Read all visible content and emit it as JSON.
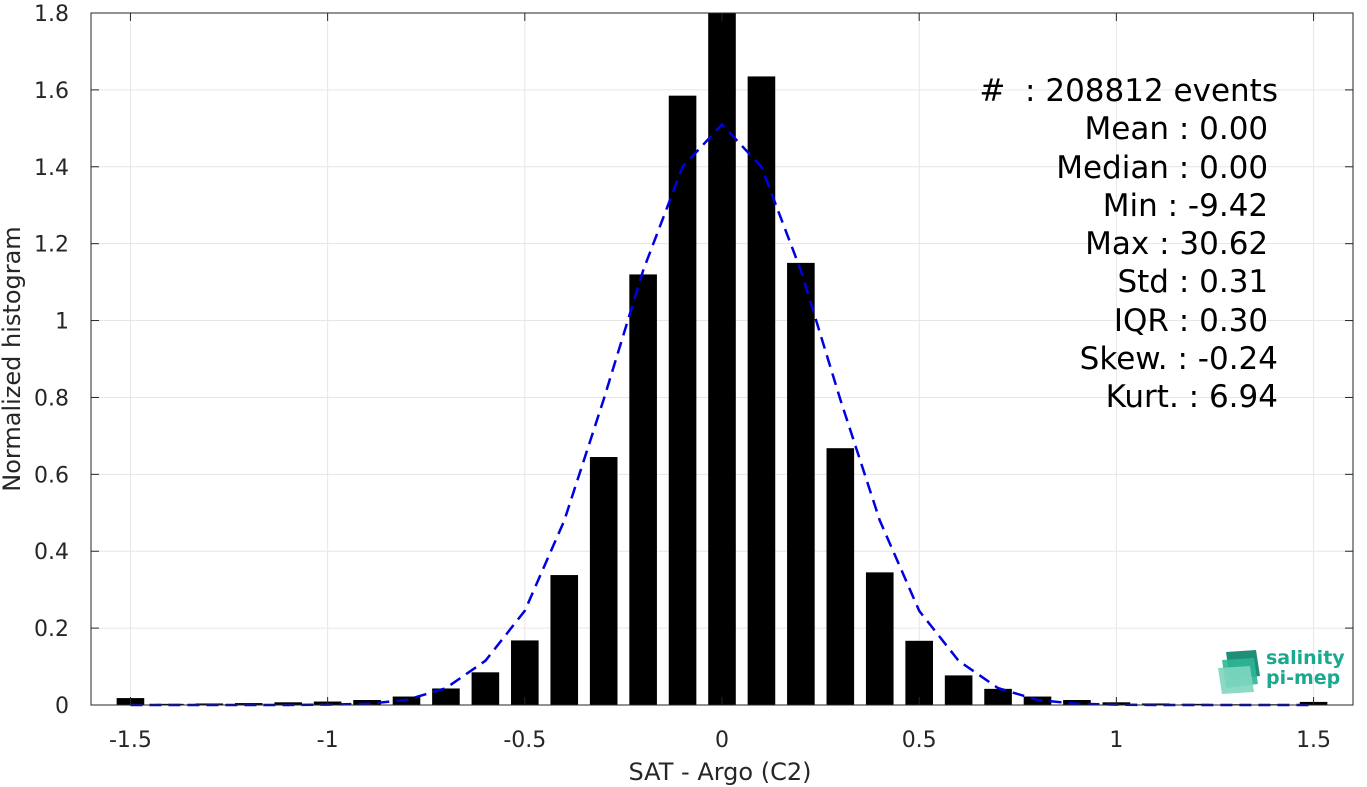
{
  "chart_data": {
    "type": "bar",
    "xlabel": "SAT - Argo (C2)",
    "ylabel": "Normalized histogram",
    "xlim": [
      -1.6,
      1.6
    ],
    "ylim": [
      0,
      1.8
    ],
    "xticks": [
      -1.5,
      -1,
      -0.5,
      0,
      0.5,
      1,
      1.5
    ],
    "xtick_labels": [
      "-1.5",
      "-1",
      "-0.5",
      "0",
      "0.5",
      "1",
      "1.5"
    ],
    "yticks": [
      0,
      0.2,
      0.4,
      0.6,
      0.8,
      1,
      1.2,
      1.4,
      1.6,
      1.8
    ],
    "ytick_labels": [
      "0",
      "0.2",
      "0.4",
      "0.6",
      "0.8",
      "1",
      "1.2",
      "1.4",
      "1.6",
      "1.8"
    ],
    "grid": true,
    "bar_color": "#000000",
    "series": [
      {
        "type": "bar",
        "x": [
          -1.5,
          -1.4,
          -1.3,
          -1.2,
          -1.1,
          -1.0,
          -0.9,
          -0.8,
          -0.7,
          -0.6,
          -0.5,
          -0.4,
          -0.3,
          -0.2,
          -0.1,
          0.0,
          0.1,
          0.2,
          0.3,
          0.4,
          0.5,
          0.6,
          0.7,
          0.8,
          0.9,
          1.0,
          1.1,
          1.2,
          1.3,
          1.4,
          1.5
        ],
        "values": [
          0.018,
          0.003,
          0.004,
          0.005,
          0.007,
          0.009,
          0.013,
          0.022,
          0.043,
          0.085,
          0.168,
          0.338,
          0.645,
          1.12,
          1.585,
          1.8,
          1.635,
          1.15,
          0.668,
          0.345,
          0.167,
          0.077,
          0.042,
          0.022,
          0.013,
          0.007,
          0.004,
          0.003,
          0.002,
          0.002,
          0.008
        ]
      },
      {
        "type": "line",
        "style": "dashed",
        "color": "#0000e0",
        "x": [
          -1.5,
          -1.4,
          -1.3,
          -1.2,
          -1.1,
          -1.0,
          -0.9,
          -0.8,
          -0.7,
          -0.6,
          -0.5,
          -0.4,
          -0.3,
          -0.2,
          -0.1,
          0.0,
          0.1,
          0.2,
          0.3,
          0.4,
          0.5,
          0.6,
          0.7,
          0.8,
          0.9,
          1.0,
          1.1,
          1.2,
          1.3,
          1.4,
          1.5
        ],
        "values": [
          0.0,
          0.0,
          0.0,
          0.0,
          0.0,
          0.001,
          0.003,
          0.013,
          0.044,
          0.115,
          0.245,
          0.48,
          0.795,
          1.13,
          1.4,
          1.51,
          1.4,
          1.13,
          0.795,
          0.48,
          0.245,
          0.115,
          0.044,
          0.013,
          0.003,
          0.001,
          0.0,
          0.0,
          0.0,
          0.0,
          0.0
        ]
      }
    ]
  },
  "stats": [
    "#  : 208812 events",
    "Mean : 0.00 ",
    "Median : 0.00 ",
    "Min : -9.42 ",
    "Max : 30.62 ",
    "Std : 0.31 ",
    "IQR : 0.30 ",
    "Skew. : -0.24",
    "Kurt. : 6.94"
  ],
  "logo": {
    "line1": "salinity",
    "line2": "pi-mep",
    "color": "#1aa88e"
  }
}
